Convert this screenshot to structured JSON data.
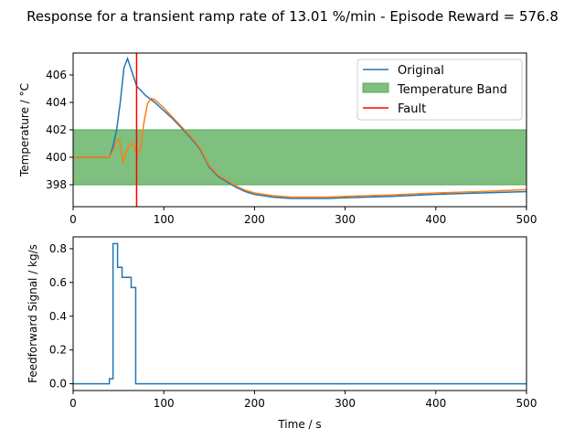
{
  "figure": {
    "suptitle": "Response for a transient ramp rate of 13.01 %/min -  Episode Reward = 576.8"
  },
  "chart_data": [
    {
      "type": "line",
      "title": "",
      "xlabel": "",
      "ylabel": "Temperature / °C",
      "xlim": [
        0,
        500
      ],
      "ylim": [
        396.4,
        407.6
      ],
      "xticks": [
        "0",
        "100",
        "200",
        "300",
        "400",
        "500"
      ],
      "yticks": [
        "398",
        "400",
        "402",
        "404",
        "406"
      ],
      "xtick_values": [
        0,
        100,
        200,
        300,
        400,
        500
      ],
      "ytick_values": [
        398,
        400,
        402,
        404,
        406
      ],
      "grid": false,
      "legend_placement": "upper right",
      "band": {
        "name": "Temperature Band",
        "y0": 398,
        "y1": 402,
        "color": "#7fbf7f"
      },
      "vline": {
        "name": "Fault",
        "x": 70,
        "color": "#ff0000"
      },
      "series": [
        {
          "name": "Original",
          "color": "#1f77b4",
          "x": [
            0,
            40,
            44,
            48,
            52,
            56,
            60,
            65,
            70,
            80,
            90,
            100,
            110,
            120,
            130,
            140,
            150,
            160,
            170,
            180,
            190,
            200,
            220,
            240,
            260,
            280,
            300,
            350,
            400,
            450,
            500
          ],
          "y": [
            400,
            400,
            400.8,
            402,
            404,
            406.5,
            407.2,
            406.2,
            405.2,
            404.5,
            404,
            403.4,
            402.8,
            402.1,
            401.4,
            400.6,
            399.3,
            398.6,
            398.2,
            397.8,
            397.5,
            397.3,
            397.1,
            397.0,
            397.0,
            397.0,
            397.05,
            397.15,
            397.3,
            397.4,
            397.5
          ]
        },
        {
          "name": "",
          "color": "#ff7f0e",
          "x": [
            0,
            40,
            44,
            48,
            51,
            55,
            58,
            62,
            66,
            70,
            74,
            78,
            82,
            86,
            90,
            100,
            110,
            120,
            130,
            140,
            150,
            160,
            170,
            180,
            190,
            200,
            220,
            240,
            260,
            280,
            300,
            350,
            400,
            450,
            500
          ],
          "y": [
            400,
            400,
            400.5,
            401.2,
            401.3,
            399.6,
            400.3,
            400.9,
            401.0,
            400.3,
            400.5,
            402.5,
            403.9,
            404.3,
            404.2,
            403.6,
            402.9,
            402.2,
            401.5,
            400.7,
            399.4,
            398.7,
            398.3,
            397.9,
            397.6,
            397.4,
            397.2,
            397.1,
            397.1,
            397.1,
            397.15,
            397.25,
            397.4,
            397.5,
            397.65
          ]
        }
      ]
    },
    {
      "type": "line",
      "title": "",
      "xlabel": "Time / s",
      "ylabel": "Feedforward Signal / kg/s",
      "xlim": [
        0,
        500
      ],
      "ylim": [
        -0.04,
        0.87
      ],
      "xticks": [
        "0",
        "100",
        "200",
        "300",
        "400",
        "500"
      ],
      "yticks": [
        "0.0",
        "0.2",
        "0.4",
        "0.6",
        "0.8"
      ],
      "xtick_values": [
        0,
        100,
        200,
        300,
        400,
        500
      ],
      "ytick_values": [
        0.0,
        0.2,
        0.4,
        0.6,
        0.8
      ],
      "grid": false,
      "series": [
        {
          "name": "",
          "step": true,
          "color": "#1f77b4",
          "x": [
            0,
            40,
            44,
            49,
            54,
            64,
            69,
            500
          ],
          "y": [
            0.0,
            0.03,
            0.83,
            0.69,
            0.63,
            0.57,
            0.0,
            0.0
          ]
        }
      ]
    }
  ]
}
